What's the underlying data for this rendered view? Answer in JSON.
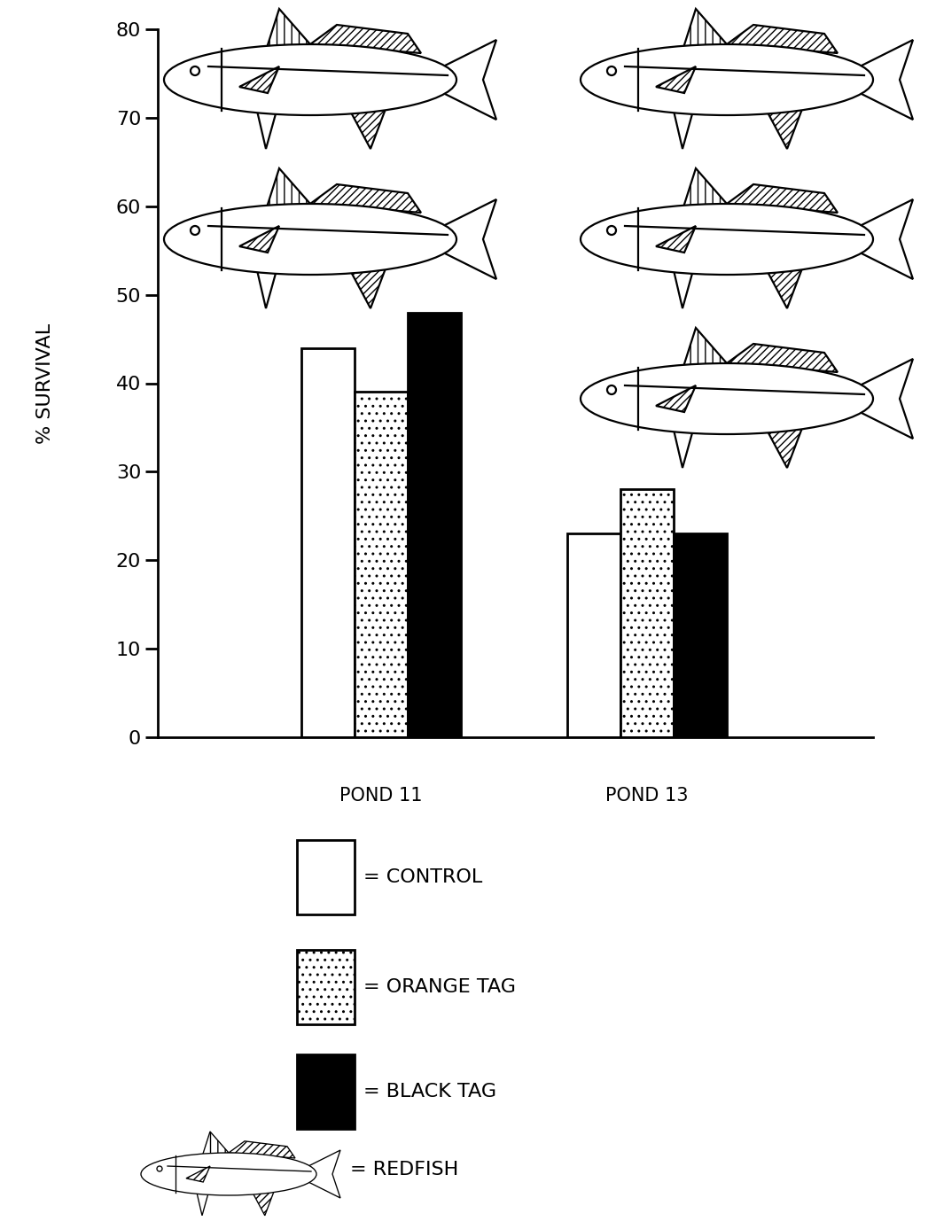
{
  "chart_data": {
    "type": "bar",
    "y_label": "% SURVIVAL",
    "categories": [
      "POND 11",
      "POND 13"
    ],
    "series": [
      {
        "name": "= CONTROL",
        "color": "#ffffff",
        "values": [
          44,
          23
        ]
      },
      {
        "name": "= ORANGE TAG",
        "color": "#ffffff",
        "values": [
          39,
          28
        ]
      },
      {
        "name": "= BLACK TAG",
        "color": "#000000",
        "values": [
          48,
          23
        ]
      }
    ],
    "redfish": {
      "name": "= REDFISH",
      "counts": [
        2,
        3
      ]
    },
    "ylim": [
      0,
      80
    ],
    "yticks": [
      0,
      10,
      20,
      30,
      40,
      50,
      60,
      70,
      80
    ],
    "grid": false
  }
}
